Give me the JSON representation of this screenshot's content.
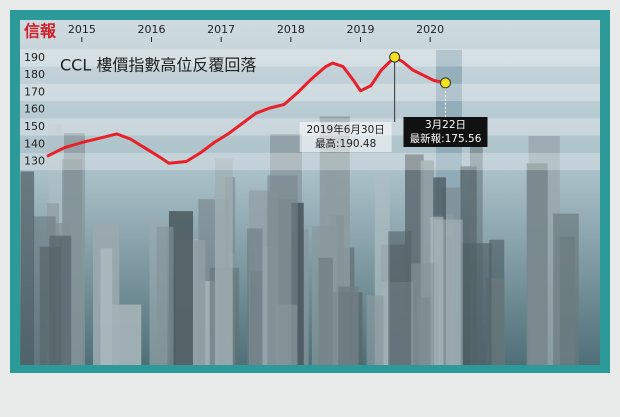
{
  "chart_data": {
    "type": "line",
    "source": "信報",
    "title": "CCL 樓價指數高位反覆回落",
    "x": [
      2014.5,
      2014.75,
      2015.0,
      2015.3,
      2015.5,
      2015.7,
      2015.9,
      2016.1,
      2016.25,
      2016.5,
      2016.7,
      2016.9,
      2017.1,
      2017.3,
      2017.5,
      2017.7,
      2017.9,
      2018.1,
      2018.3,
      2018.5,
      2018.6,
      2018.75,
      2018.9,
      2019.0,
      2019.15,
      2019.3,
      2019.49,
      2019.6,
      2019.75,
      2019.9,
      2020.05,
      2020.22
    ],
    "values": [
      133,
      138,
      141,
      144,
      146,
      143,
      138,
      133,
      129,
      130,
      135,
      141,
      146,
      152,
      158,
      161,
      163,
      170,
      178,
      185,
      187,
      185,
      177,
      171,
      174,
      183,
      190.48,
      188,
      183,
      180,
      177,
      175.56
    ],
    "color": "#e8202a",
    "xlim": [
      2014.5,
      2020.5
    ],
    "xticks": [
      2015,
      2016,
      2017,
      2018,
      2019,
      2020
    ],
    "ylim": [
      127,
      196
    ],
    "yticks": [
      130,
      140,
      150,
      160,
      170,
      180,
      190
    ],
    "grid": true,
    "annotations": [
      {
        "lines": [
          "2019年6月30日",
          "最高:190.48"
        ]
      },
      {
        "lines": [
          "3月22日",
          "最新報:175.56"
        ]
      }
    ]
  }
}
